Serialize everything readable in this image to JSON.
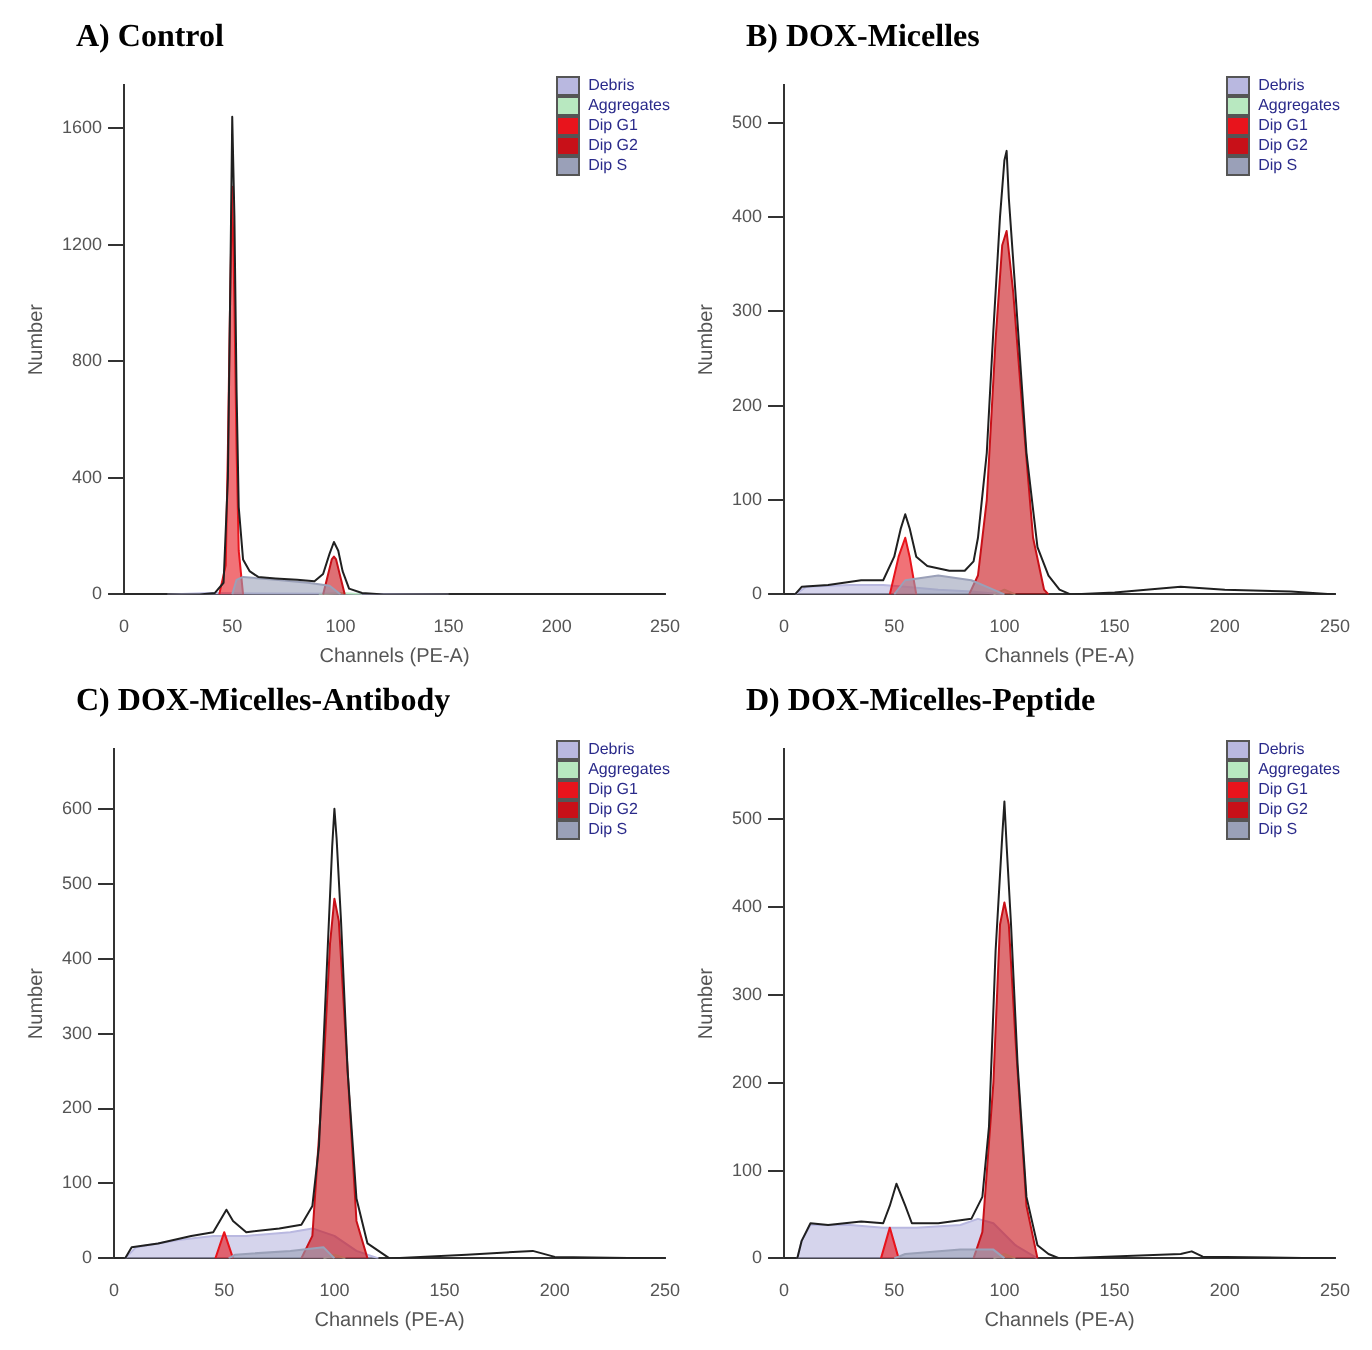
{
  "chart_data": [
    {
      "type": "area",
      "title": "A)  Control",
      "xlabel": "Channels (PE-A)",
      "ylabel": "Number",
      "xlim": [
        0,
        250
      ],
      "xticks": [
        0,
        50,
        100,
        150,
        200,
        250
      ],
      "ylim": [
        0,
        1750
      ],
      "yticks": [
        0,
        400,
        800,
        1200,
        1600
      ],
      "grid": false,
      "legend": "top right",
      "marker": "none",
      "series": [
        {
          "name": "Debris",
          "color": "#b9b8e0",
          "x": [
            20,
            40,
            60,
            100,
            150
          ],
          "values": [
            0,
            5,
            3,
            2,
            0
          ]
        },
        {
          "name": "Aggregates",
          "color": "#b8e8c0",
          "x": [
            90,
            100,
            110
          ],
          "values": [
            0,
            5,
            0
          ]
        },
        {
          "name": "Dip G1",
          "color": "#e8141c",
          "x": [
            44,
            47,
            48,
            49,
            50,
            51,
            52,
            53,
            55
          ],
          "values": [
            0,
            100,
            500,
            1000,
            1400,
            1000,
            500,
            150,
            0
          ]
        },
        {
          "name": "Dip G2",
          "color": "#c81018",
          "x": [
            92,
            94,
            96,
            97,
            98,
            100,
            102
          ],
          "values": [
            0,
            60,
            120,
            130,
            120,
            60,
            0
          ]
        },
        {
          "name": "Dip S",
          "color": "#9aa0b8",
          "x": [
            50,
            52,
            55,
            70,
            85,
            95,
            100
          ],
          "values": [
            0,
            50,
            60,
            50,
            40,
            30,
            0
          ]
        },
        {
          "type": "line",
          "color": "#202020",
          "x": [
            0,
            35,
            42,
            46,
            48,
            49,
            50,
            51,
            52,
            53,
            55,
            58,
            62,
            70,
            80,
            88,
            92,
            95,
            97,
            99,
            101,
            104,
            110,
            120,
            250
          ],
          "values": [
            0,
            0,
            5,
            40,
            400,
            1000,
            1640,
            1300,
            700,
            300,
            120,
            80,
            60,
            55,
            50,
            45,
            70,
            140,
            180,
            150,
            80,
            20,
            5,
            0,
            0
          ]
        }
      ]
    },
    {
      "type": "area",
      "title": "B)  DOX-Micelles",
      "xlabel": "Channels (PE-A)",
      "ylabel": "Number",
      "xlim": [
        0,
        250
      ],
      "xticks": [
        0,
        50,
        100,
        150,
        200,
        250
      ],
      "ylim": [
        0,
        540
      ],
      "yticks": [
        0,
        100,
        200,
        300,
        400,
        500
      ],
      "grid": false,
      "legend": "top right",
      "marker": "none",
      "series": [
        {
          "name": "Debris",
          "color": "#b9b8e0",
          "x": [
            5,
            10,
            30,
            45,
            55,
            70,
            85,
            100
          ],
          "values": [
            0,
            8,
            10,
            10,
            8,
            5,
            3,
            0
          ]
        },
        {
          "name": "Aggregates",
          "color": "#b8e8c0",
          "x": [
            95,
            100,
            105
          ],
          "values": [
            0,
            5,
            0
          ]
        },
        {
          "name": "Dip G1",
          "color": "#e8141c",
          "x": [
            48,
            52,
            55,
            57,
            60
          ],
          "values": [
            0,
            40,
            60,
            40,
            0
          ]
        },
        {
          "name": "Dip G2",
          "color": "#c81018",
          "x": [
            84,
            88,
            92,
            96,
            99,
            101,
            104,
            108,
            113,
            118,
            120
          ],
          "values": [
            0,
            20,
            100,
            270,
            370,
            385,
            320,
            200,
            60,
            5,
            0
          ]
        },
        {
          "name": "Dip S",
          "color": "#9aa0b8",
          "x": [
            50,
            55,
            70,
            85,
            95,
            100
          ],
          "values": [
            0,
            15,
            20,
            15,
            5,
            0
          ]
        },
        {
          "type": "line",
          "color": "#202020",
          "x": [
            0,
            5,
            8,
            20,
            35,
            45,
            50,
            53,
            55,
            57,
            60,
            65,
            75,
            82,
            86,
            88,
            92,
            95,
            98,
            100,
            101,
            102,
            105,
            110,
            115,
            120,
            125,
            130,
            150,
            180,
            200,
            230,
            250
          ],
          "values": [
            0,
            0,
            8,
            10,
            15,
            15,
            40,
            70,
            85,
            70,
            40,
            30,
            25,
            25,
            35,
            60,
            150,
            280,
            400,
            460,
            470,
            420,
            320,
            150,
            50,
            20,
            5,
            0,
            2,
            8,
            5,
            3,
            0
          ]
        }
      ]
    },
    {
      "type": "area",
      "title": "C)  DOX-Micelles-Antibody",
      "xlabel": "Channels (PE-A)",
      "ylabel": "Number",
      "xlim": [
        0,
        250
      ],
      "xticks": [
        0,
        50,
        100,
        150,
        200,
        250
      ],
      "ylim": [
        0,
        680
      ],
      "yticks": [
        0,
        100,
        200,
        300,
        400,
        500,
        600
      ],
      "grid": false,
      "legend": "top right",
      "marker": "none",
      "series": [
        {
          "name": "Debris",
          "color": "#b9b8e0",
          "x": [
            5,
            10,
            30,
            45,
            60,
            80,
            90,
            100,
            110,
            120
          ],
          "values": [
            0,
            15,
            25,
            30,
            30,
            35,
            40,
            30,
            10,
            0
          ]
        },
        {
          "name": "Aggregates",
          "color": "#b8e8c0",
          "x": [
            95,
            100,
            105
          ],
          "values": [
            0,
            5,
            0
          ]
        },
        {
          "name": "Dip G1",
          "color": "#e8141c",
          "x": [
            46,
            50,
            54
          ],
          "values": [
            0,
            35,
            0
          ]
        },
        {
          "name": "Dip G2",
          "color": "#c81018",
          "x": [
            85,
            90,
            95,
            98,
            100,
            102,
            105,
            110,
            115
          ],
          "values": [
            0,
            30,
            250,
            420,
            480,
            450,
            300,
            50,
            0
          ]
        },
        {
          "name": "Dip S",
          "color": "#9aa0b8",
          "x": [
            52,
            55,
            80,
            95,
            100
          ],
          "values": [
            0,
            5,
            10,
            15,
            0
          ]
        },
        {
          "type": "line",
          "color": "#202020",
          "x": [
            0,
            5,
            8,
            20,
            35,
            45,
            48,
            51,
            54,
            60,
            75,
            85,
            90,
            93,
            96,
            99,
            100,
            101,
            103,
            106,
            110,
            115,
            120,
            125,
            160,
            190,
            200,
            250
          ],
          "values": [
            0,
            0,
            15,
            20,
            30,
            35,
            50,
            65,
            50,
            35,
            40,
            45,
            70,
            150,
            350,
            550,
            600,
            560,
            450,
            250,
            80,
            20,
            10,
            0,
            5,
            10,
            2,
            0
          ]
        }
      ]
    },
    {
      "type": "area",
      "title": "D)  DOX-Micelles-Peptide",
      "xlabel": "Channels (PE-A)",
      "ylabel": "Number",
      "xlim": [
        0,
        250
      ],
      "xticks": [
        0,
        50,
        100,
        150,
        200,
        250
      ],
      "ylim": [
        0,
        580
      ],
      "yticks": [
        0,
        100,
        200,
        300,
        400,
        500
      ],
      "grid": false,
      "legend": "top right",
      "marker": "none",
      "series": [
        {
          "name": "Debris",
          "color": "#b9b8e0",
          "x": [
            6,
            8,
            12,
            30,
            45,
            60,
            80,
            88,
            95,
            105,
            115
          ],
          "values": [
            0,
            20,
            38,
            38,
            35,
            35,
            38,
            45,
            40,
            15,
            0
          ]
        },
        {
          "name": "Aggregates",
          "color": "#b8e8c0",
          "x": [
            95,
            100,
            105
          ],
          "values": [
            0,
            5,
            0
          ]
        },
        {
          "name": "Dip G1",
          "color": "#e8141c",
          "x": [
            44,
            48,
            52
          ],
          "values": [
            0,
            35,
            0
          ]
        },
        {
          "name": "Dip G2",
          "color": "#c81018",
          "x": [
            86,
            90,
            95,
            98,
            100,
            102,
            105,
            110,
            115
          ],
          "values": [
            0,
            30,
            200,
            380,
            405,
            380,
            250,
            60,
            0
          ]
        },
        {
          "name": "Dip S",
          "color": "#9aa0b8",
          "x": [
            50,
            55,
            80,
            95,
            100
          ],
          "values": [
            0,
            5,
            10,
            10,
            0
          ]
        },
        {
          "type": "line",
          "color": "#202020",
          "x": [
            0,
            6,
            8,
            12,
            20,
            35,
            45,
            48,
            51,
            55,
            58,
            70,
            85,
            90,
            93,
            96,
            99,
            100,
            101,
            103,
            106,
            110,
            115,
            120,
            125,
            180,
            185,
            190,
            250
          ],
          "values": [
            0,
            0,
            20,
            40,
            38,
            42,
            40,
            60,
            85,
            60,
            40,
            40,
            45,
            70,
            150,
            350,
            480,
            520,
            470,
            380,
            220,
            70,
            15,
            5,
            0,
            5,
            8,
            2,
            0
          ]
        }
      ]
    }
  ]
}
